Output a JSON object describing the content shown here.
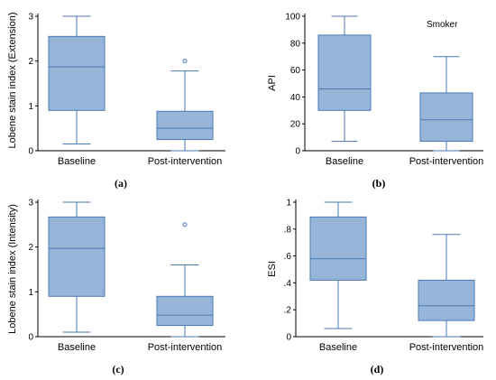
{
  "style": {
    "box_fill": "#97b5d9",
    "line_color": "#4a7ab5",
    "axis_color": "#000000"
  },
  "chart_data": [
    {
      "type": "box",
      "label": "(a)",
      "ylabel": "Lobene stain index (Extension)",
      "ylim": [
        0,
        3
      ],
      "yticks": [
        0,
        1,
        2,
        3
      ],
      "ytick_labels": [
        "0",
        "1",
        "2",
        "3"
      ],
      "categories": [
        "Baseline",
        "Post-intervention"
      ],
      "boxes": [
        {
          "min": 0.15,
          "q1": 0.9,
          "median": 1.87,
          "q3": 2.55,
          "max": 3.0,
          "outliers": []
        },
        {
          "min": 0.0,
          "q1": 0.25,
          "median": 0.5,
          "q3": 0.88,
          "max": 1.78,
          "outliers": [
            2.0
          ]
        }
      ],
      "annotation": ""
    },
    {
      "type": "box",
      "label": "(b)",
      "ylabel": "API",
      "ylim": [
        0,
        100
      ],
      "yticks": [
        0,
        20,
        40,
        60,
        80,
        100
      ],
      "ytick_labels": [
        "0",
        "20",
        "40",
        "60",
        "80",
        "100"
      ],
      "categories": [
        "Baseline",
        "Post-intervention"
      ],
      "boxes": [
        {
          "min": 7,
          "q1": 30,
          "median": 46,
          "q3": 86,
          "max": 100,
          "outliers": []
        },
        {
          "min": 0,
          "q1": 7,
          "median": 23,
          "q3": 43,
          "max": 70,
          "outliers": []
        }
      ],
      "annotation": "Smoker"
    },
    {
      "type": "box",
      "label": "(c)",
      "ylabel": "Lobene stain index (Intensity)",
      "ylim": [
        0,
        3
      ],
      "yticks": [
        0,
        1,
        2,
        3
      ],
      "ytick_labels": [
        "0",
        "1",
        "2",
        "3"
      ],
      "categories": [
        "Baseline",
        "Post-intervention"
      ],
      "boxes": [
        {
          "min": 0.1,
          "q1": 0.9,
          "median": 1.97,
          "q3": 2.67,
          "max": 3.0,
          "outliers": []
        },
        {
          "min": 0.0,
          "q1": 0.25,
          "median": 0.48,
          "q3": 0.9,
          "max": 1.6,
          "outliers": [
            2.5
          ]
        }
      ],
      "annotation": ""
    },
    {
      "type": "box",
      "label": "(d)",
      "ylabel": "ESI",
      "ylim": [
        0,
        1
      ],
      "yticks": [
        0,
        0.2,
        0.4,
        0.6,
        0.8,
        1
      ],
      "ytick_labels": [
        "0",
        ".2",
        ".4",
        ".6",
        ".8",
        "1"
      ],
      "categories": [
        "Baseline",
        "Post-intervention"
      ],
      "boxes": [
        {
          "min": 0.06,
          "q1": 0.42,
          "median": 0.58,
          "q3": 0.89,
          "max": 1.0,
          "outliers": []
        },
        {
          "min": 0.0,
          "q1": 0.12,
          "median": 0.23,
          "q3": 0.42,
          "max": 0.76,
          "outliers": []
        }
      ],
      "annotation": ""
    }
  ]
}
